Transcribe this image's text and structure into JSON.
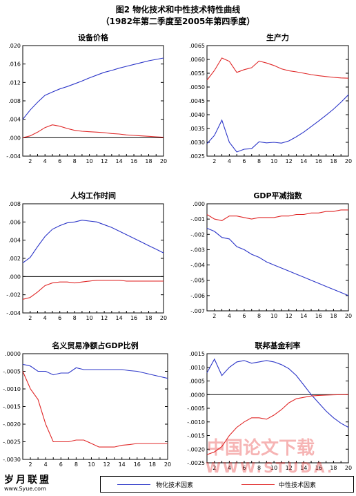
{
  "figure": {
    "title": "图2   物化技术和中性技术特性曲线",
    "subtitle": "（1982年第二季度至2005年第四季度）"
  },
  "legend": {
    "items": [
      {
        "label": "物化技术因素",
        "color": "#2b35c8"
      },
      {
        "label": "中性技术因素",
        "color": "#e02828"
      }
    ]
  },
  "watermarks": {
    "left_brand": "岁月联盟",
    "left_url": "www.Syue.com",
    "right_cn": "中国论文下载",
    "right_en": "WWW.STUDA."
  },
  "chart_data": [
    {
      "type": "line",
      "title": "设备价格",
      "x": [
        1,
        2,
        3,
        4,
        5,
        6,
        7,
        8,
        9,
        10,
        11,
        12,
        13,
        14,
        15,
        16,
        17,
        18,
        19,
        20
      ],
      "xticks": [
        2,
        4,
        6,
        8,
        10,
        12,
        14,
        16,
        18,
        20
      ],
      "ylim": [
        -0.004,
        0.02
      ],
      "yticks": [
        -0.004,
        0.0,
        0.004,
        0.008,
        0.012,
        0.016,
        0.02
      ],
      "yticklabels": [
        "-.004",
        ".000",
        ".004",
        ".008",
        ".012",
        ".016",
        ".020"
      ],
      "zero_line": true,
      "series": [
        {
          "name": "物化技术因素",
          "color": "#2b35c8",
          "values": [
            0.004,
            0.006,
            0.0077,
            0.0092,
            0.0099,
            0.0106,
            0.0111,
            0.0117,
            0.0123,
            0.013,
            0.0136,
            0.0142,
            0.0146,
            0.0151,
            0.0155,
            0.0159,
            0.0163,
            0.0167,
            0.017,
            0.0173
          ]
        },
        {
          "name": "中性技术因素",
          "color": "#e02828",
          "values": [
            0.0,
            0.0004,
            0.0012,
            0.0022,
            0.0028,
            0.0025,
            0.002,
            0.0016,
            0.0014,
            0.0013,
            0.0012,
            0.0011,
            0.0009,
            0.0008,
            0.0006,
            0.0005,
            0.0004,
            0.0003,
            0.0002,
            0.0001
          ]
        }
      ]
    },
    {
      "type": "line",
      "title": "生产力",
      "x": [
        1,
        2,
        3,
        4,
        5,
        6,
        7,
        8,
        9,
        10,
        11,
        12,
        13,
        14,
        15,
        16,
        17,
        18,
        19,
        20
      ],
      "xticks": [
        2,
        4,
        6,
        8,
        10,
        12,
        14,
        16,
        18,
        20
      ],
      "ylim": [
        0.0025,
        0.0065
      ],
      "yticks": [
        0.0025,
        0.003,
        0.0035,
        0.004,
        0.0045,
        0.005,
        0.0055,
        0.006,
        0.0065
      ],
      "yticklabels": [
        ".0025",
        ".0030",
        ".0035",
        ".0040",
        ".0045",
        ".0050",
        ".0055",
        ".0060",
        ".0065"
      ],
      "zero_line": false,
      "series": [
        {
          "name": "物化技术因素",
          "color": "#2b35c8",
          "values": [
            0.00295,
            0.00325,
            0.0038,
            0.003,
            0.00265,
            0.00275,
            0.00277,
            0.00302,
            0.00298,
            0.003,
            0.00297,
            0.00305,
            0.0032,
            0.00337,
            0.00357,
            0.00377,
            0.00398,
            0.0042,
            0.00445,
            0.00472
          ]
        },
        {
          "name": "中性技术因素",
          "color": "#e02828",
          "values": [
            0.00525,
            0.0056,
            0.00605,
            0.00593,
            0.00553,
            0.00563,
            0.0057,
            0.00594,
            0.00587,
            0.00578,
            0.00566,
            0.00559,
            0.00555,
            0.0055,
            0.00545,
            0.00541,
            0.00538,
            0.00535,
            0.00533,
            0.00532
          ]
        }
      ]
    },
    {
      "type": "line",
      "title": "人均工作时间",
      "x": [
        1,
        2,
        3,
        4,
        5,
        6,
        7,
        8,
        9,
        10,
        11,
        12,
        13,
        14,
        15,
        16,
        17,
        18,
        19,
        20
      ],
      "xticks": [
        2,
        4,
        6,
        8,
        10,
        12,
        14,
        16,
        18,
        20
      ],
      "ylim": [
        -0.004,
        0.008
      ],
      "yticks": [
        -0.004,
        -0.002,
        0.0,
        0.002,
        0.004,
        0.006,
        0.008
      ],
      "yticklabels": [
        "-.004",
        "-.002",
        ".000",
        ".002",
        ".004",
        ".006",
        ".008"
      ],
      "zero_line": true,
      "series": [
        {
          "name": "物化技术因素",
          "color": "#2b35c8",
          "values": [
            0.0015,
            0.0021,
            0.0033,
            0.0044,
            0.0052,
            0.0056,
            0.0059,
            0.006,
            0.0062,
            0.0061,
            0.006,
            0.0057,
            0.0054,
            0.005,
            0.0046,
            0.0042,
            0.0038,
            0.0034,
            0.003,
            0.0026
          ]
        },
        {
          "name": "中性技术因素",
          "color": "#e02828",
          "values": [
            -0.0025,
            -0.0023,
            -0.0017,
            -0.001,
            -0.0007,
            -0.0006,
            -0.0006,
            -0.0007,
            -0.0006,
            -0.0005,
            -0.0004,
            -0.0004,
            -0.0004,
            -0.0004,
            -0.0005,
            -0.0005,
            -0.0005,
            -0.0005,
            -0.0005,
            -0.0005
          ]
        }
      ]
    },
    {
      "type": "line",
      "title": "GDP平减指数",
      "x": [
        1,
        2,
        3,
        4,
        5,
        6,
        7,
        8,
        9,
        10,
        11,
        12,
        13,
        14,
        15,
        16,
        17,
        18,
        19,
        20
      ],
      "xticks": [
        2,
        4,
        6,
        8,
        10,
        12,
        14,
        16,
        18,
        20
      ],
      "ylim": [
        -0.007,
        0.0
      ],
      "yticks": [
        -0.007,
        -0.006,
        -0.005,
        -0.004,
        -0.003,
        -0.002,
        -0.001,
        0.0
      ],
      "yticklabels": [
        "-.007",
        "-.006",
        "-.005",
        "-.004",
        "-.003",
        "-.002",
        "-.001",
        ".000"
      ],
      "zero_line": false,
      "series": [
        {
          "name": "物化技术因素",
          "color": "#2b35c8",
          "values": [
            -0.0016,
            -0.0018,
            -0.0022,
            -0.0023,
            -0.0028,
            -0.003,
            -0.0033,
            -0.0035,
            -0.0038,
            -0.004,
            -0.0042,
            -0.0044,
            -0.0046,
            -0.0048,
            -0.005,
            -0.0052,
            -0.0054,
            -0.0056,
            -0.0058,
            -0.006
          ]
        },
        {
          "name": "中性技术因素",
          "color": "#e02828",
          "values": [
            -0.0007,
            -0.001,
            -0.0011,
            -0.0008,
            -0.0008,
            -0.0009,
            -0.001,
            -0.0009,
            -0.0009,
            -0.0009,
            -0.0008,
            -0.0008,
            -0.0007,
            -0.0007,
            -0.0006,
            -0.0006,
            -0.0005,
            -0.0005,
            -0.0004,
            -0.0004
          ]
        }
      ]
    },
    {
      "type": "line",
      "title": "名义贸易净额占GDP比例",
      "x": [
        1,
        2,
        3,
        4,
        5,
        6,
        7,
        8,
        9,
        10,
        11,
        12,
        13,
        14,
        15,
        16,
        17,
        18,
        19,
        20
      ],
      "xticks": [
        2,
        4,
        6,
        8,
        10,
        12,
        14,
        16,
        18,
        20
      ],
      "ylim": [
        -0.003,
        0.0
      ],
      "yticks": [
        -0.003,
        -0.0025,
        -0.002,
        -0.0015,
        -0.001,
        -0.0005,
        0.0
      ],
      "yticklabels": [
        "-.0030",
        "-.0025",
        "-.0020",
        "-.0015",
        "-.0010",
        "-.0005",
        ".0000"
      ],
      "zero_line": false,
      "series": [
        {
          "name": "物化技术因素",
          "color": "#2b35c8",
          "values": [
            -0.0003,
            -0.00035,
            -0.0005,
            -0.0005,
            -0.0006,
            -0.00055,
            -0.00055,
            -0.0004,
            -0.00045,
            -0.00045,
            -0.00045,
            -0.00045,
            -0.00045,
            -0.00045,
            -0.00048,
            -0.0005,
            -0.00055,
            -0.0006,
            -0.00065,
            -0.0007
          ]
        },
        {
          "name": "中性技术因素",
          "color": "#e02828",
          "values": [
            -0.0005,
            -0.001,
            -0.0013,
            -0.002,
            -0.0025,
            -0.0025,
            -0.0025,
            -0.00245,
            -0.00245,
            -0.00255,
            -0.00265,
            -0.00265,
            -0.00265,
            -0.0026,
            -0.00258,
            -0.00255,
            -0.00255,
            -0.00255,
            -0.00255,
            -0.00255
          ]
        }
      ]
    },
    {
      "type": "line",
      "title": "联邦基金利率",
      "x": [
        1,
        2,
        3,
        4,
        5,
        6,
        7,
        8,
        9,
        10,
        11,
        12,
        13,
        14,
        15,
        16,
        17,
        18,
        19,
        20
      ],
      "xticks": [
        2,
        4,
        6,
        8,
        10,
        12,
        14,
        16,
        18,
        20
      ],
      "ylim": [
        -0.0025,
        0.0015
      ],
      "yticks": [
        -0.0025,
        -0.002,
        -0.0015,
        -0.001,
        -0.0005,
        0.0,
        0.0005,
        0.001,
        0.0015
      ],
      "yticklabels": [
        "-.0025",
        "-.0020",
        "-.0015",
        "-.0010",
        "-.0005",
        ".0000",
        ".0005",
        ".0010",
        ".0015"
      ],
      "zero_line": true,
      "series": [
        {
          "name": "物化技术因素",
          "color": "#2b35c8",
          "values": [
            0.0008,
            0.0013,
            0.0007,
            0.001,
            0.0012,
            0.00125,
            0.00115,
            0.0012,
            0.00125,
            0.0012,
            0.0011,
            0.00095,
            0.0007,
            0.00035,
            0.0,
            -0.0003,
            -0.0006,
            -0.00085,
            -0.00105,
            -0.0012
          ]
        },
        {
          "name": "中性技术因素",
          "color": "#e02828",
          "values": [
            -0.0022,
            -0.0021,
            -0.0019,
            -0.0015,
            -0.0012,
            -0.001,
            -0.00085,
            -0.00085,
            -0.0009,
            -0.00075,
            -0.00055,
            -0.0003,
            -0.00015,
            -0.0001,
            -5e-05,
            -3e-05,
            -2e-05,
            -1e-05,
            0.0,
            0.0
          ]
        }
      ]
    }
  ]
}
